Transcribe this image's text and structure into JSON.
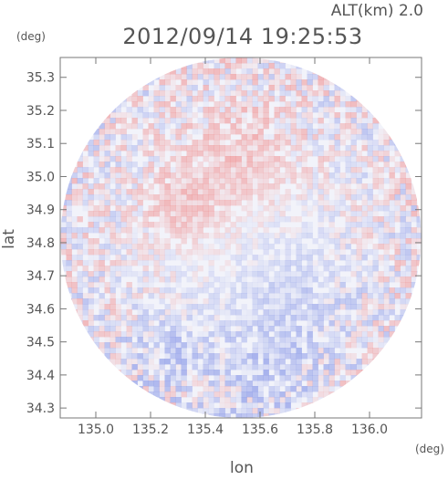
{
  "header": {
    "altitude": "ALT(km) 2.0",
    "timestamp": "2012/09/14 19:25:53"
  },
  "chart_data": {
    "type": "heatmap",
    "title": "2012/09/14 19:25:53",
    "subtitle": "ALT(km) 2.0",
    "xlabel": "lon",
    "ylabel": "lat",
    "xunit": "(deg)",
    "yunit": "(deg)",
    "xlim": [
      134.87,
      136.19
    ],
    "ylim": [
      34.27,
      35.36
    ],
    "xticks": [
      "135.0",
      "135.2",
      "135.4",
      "135.6",
      "135.8",
      "136.0"
    ],
    "yticks": [
      "35.3",
      "35.2",
      "35.1",
      "35.0",
      "34.9",
      "34.8",
      "34.7",
      "34.6",
      "34.5",
      "34.4",
      "34.3"
    ],
    "domain": {
      "shape": "circle",
      "center": [
        135.53,
        34.815
      ],
      "radius_deg_lat": 0.545
    },
    "regions": [
      {
        "tone": "red",
        "center": [
          135.52,
          35.07
        ],
        "extent": 0.12
      },
      {
        "tone": "red",
        "center": [
          135.3,
          34.92
        ],
        "extent": 0.08
      },
      {
        "tone": "blue",
        "center": [
          135.7,
          34.62
        ],
        "extent": 0.13
      },
      {
        "tone": "blue",
        "center": [
          135.6,
          34.4
        ],
        "extent": 0.1
      },
      {
        "tone": "blue",
        "center": [
          135.25,
          34.48
        ],
        "extent": 0.09
      }
    ],
    "colors": {
      "positive": "#f08a8a",
      "negative": "#8f9de8",
      "background": "#f2f3fa",
      "axis": "#777777",
      "text": "#555555"
    }
  }
}
